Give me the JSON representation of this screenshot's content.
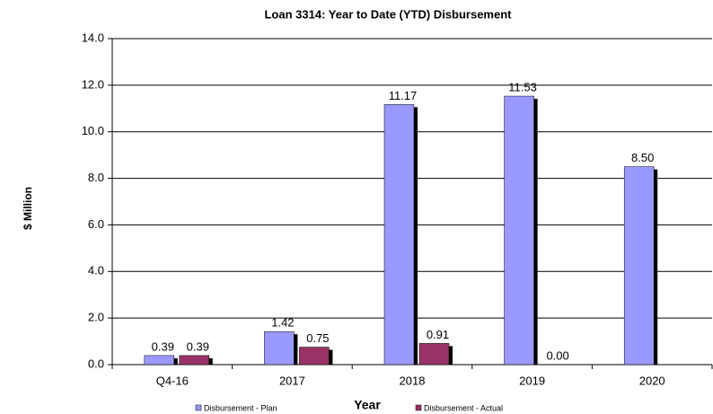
{
  "chart_data": {
    "type": "bar",
    "title": "Loan 3314: Year to Date (YTD) Disbursement",
    "x_label": "Year",
    "y_label": "$ Million",
    "categories": [
      "Q4-16",
      "2017",
      "2018",
      "2019",
      "2020"
    ],
    "series": [
      {
        "name": "Disbursement - Plan",
        "color": "#9999ff",
        "values": [
          0.39,
          1.42,
          11.17,
          11.53,
          8.5
        ],
        "value_labels": [
          "0.39",
          "1.42",
          "11.17",
          "11.53",
          "8.50"
        ]
      },
      {
        "name": "Disbursement - Actual",
        "color": "#993366",
        "values": [
          0.39,
          0.75,
          0.91,
          0,
          null
        ],
        "value_labels": [
          "0.39",
          "0.75",
          "0.91",
          "0.00",
          null
        ]
      }
    ],
    "ylim": [
      0,
      14
    ],
    "yticks": [
      {
        "value": 0,
        "label": "0.0"
      },
      {
        "value": 2,
        "label": "2.0"
      },
      {
        "value": 4,
        "label": "4.0"
      },
      {
        "value": 6,
        "label": "6.0"
      },
      {
        "value": 8,
        "label": "8.0"
      },
      {
        "value": 10,
        "label": "10.0"
      },
      {
        "value": 12,
        "label": "12.0"
      },
      {
        "value": 14,
        "label": "14.0"
      }
    ],
    "grid": true
  }
}
